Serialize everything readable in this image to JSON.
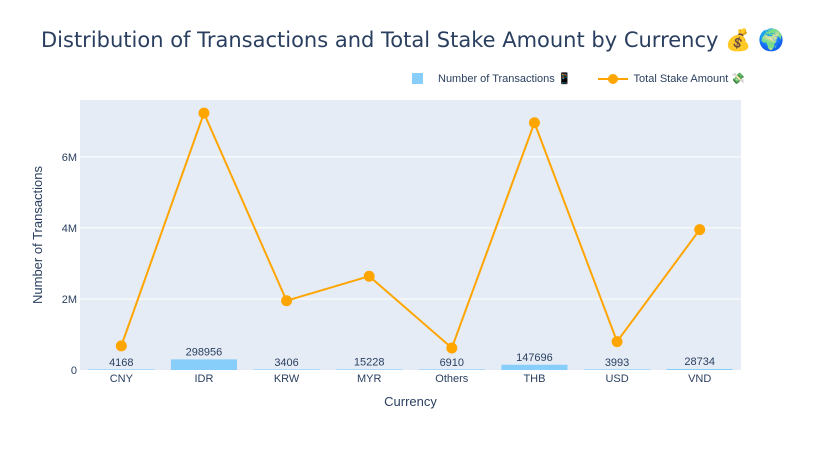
{
  "title": "Distribution of Transactions and Total Stake Amount by Currency 💰 🌍",
  "legend": {
    "bar_label": "Number of Transactions 📱",
    "line_label": "Total Stake Amount 💸"
  },
  "chart_data": {
    "type": "bar",
    "title": "Distribution of Transactions and Total Stake Amount by Currency 💰 🌍",
    "xlabel": "Currency",
    "ylabel": "Number of Transactions",
    "categories": [
      "CNY",
      "IDR",
      "KRW",
      "MYR",
      "Others",
      "THB",
      "USD",
      "VND"
    ],
    "ylim": [
      0,
      7600000
    ],
    "yticks": [
      0,
      2000000,
      4000000,
      6000000
    ],
    "ytick_labels": [
      "0",
      "2M",
      "4M",
      "6M"
    ],
    "grid": true,
    "legend_position": "top-right",
    "series": [
      {
        "name": "Number of Transactions 📱",
        "type": "bar",
        "color": "#87cefa",
        "values": [
          4168,
          298956,
          3406,
          15228,
          6910,
          147696,
          3993,
          28734
        ],
        "labels": [
          "4168",
          "298956",
          "3406",
          "15228",
          "6910",
          "147696",
          "3993",
          "28734"
        ]
      },
      {
        "name": "Total Stake Amount 💸",
        "type": "line",
        "color": "#ffa500",
        "values": [
          680000,
          7230000,
          1950000,
          2640000,
          620000,
          6960000,
          800000,
          3950000
        ]
      }
    ]
  }
}
